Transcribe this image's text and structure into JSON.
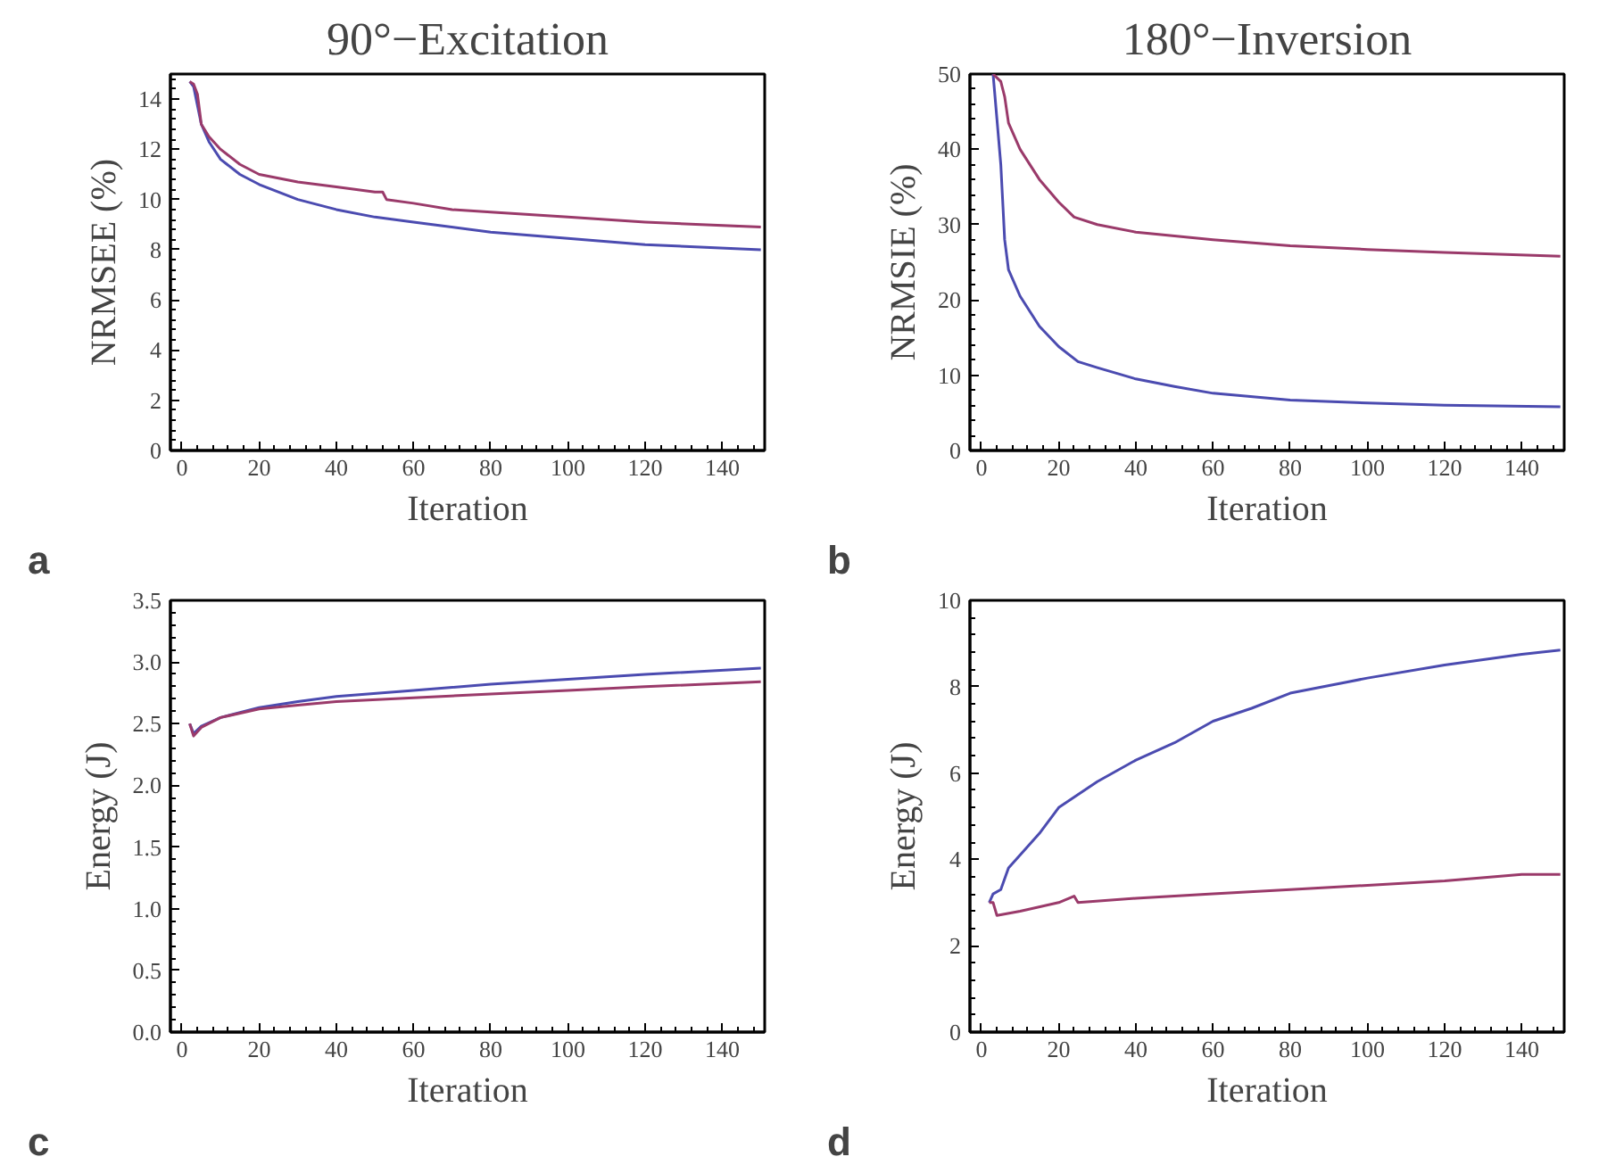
{
  "chart_data": [
    {
      "type": "line",
      "title": "90°−Excitation",
      "xlabel": "Iteration",
      "ylabel": "NRMSEE (%)",
      "annotations": [
        "a"
      ],
      "xlim": [
        -3,
        151
      ],
      "xticks": [
        0,
        20,
        40,
        60,
        80,
        100,
        120,
        140
      ],
      "ylim": [
        0,
        15
      ],
      "yticks": [
        0,
        2,
        4,
        6,
        8,
        10,
        12,
        14
      ],
      "grid": false,
      "series": [
        {
          "color": "#4b4bb0",
          "x": [
            2,
            3,
            5,
            7,
            10,
            15,
            20,
            30,
            40,
            50,
            60,
            80,
            100,
            120,
            150
          ],
          "values": [
            14.7,
            14.5,
            13,
            12.3,
            11.6,
            11.0,
            10.6,
            10.0,
            9.6,
            9.3,
            9.1,
            8.7,
            8.45,
            8.2,
            8.0
          ]
        },
        {
          "color": "#9a3a6a",
          "x": [
            2,
            3,
            4,
            5,
            7,
            10,
            15,
            20,
            30,
            40,
            50,
            52,
            53,
            60,
            70,
            80,
            100,
            120,
            150
          ],
          "values": [
            14.7,
            14.6,
            14.2,
            13,
            12.5,
            12.0,
            11.4,
            11.0,
            10.7,
            10.5,
            10.3,
            10.3,
            10.0,
            9.85,
            9.6,
            9.5,
            9.3,
            9.1,
            8.9
          ]
        }
      ]
    },
    {
      "type": "line",
      "title": "180°−Inversion",
      "xlabel": "Iteration",
      "ylabel": "NRMSIE (%)",
      "annotations": [
        "b"
      ],
      "xlim": [
        -3,
        151
      ],
      "xticks": [
        0,
        20,
        40,
        60,
        80,
        100,
        120,
        140
      ],
      "ylim": [
        0,
        50
      ],
      "yticks": [
        0,
        10,
        20,
        30,
        40,
        50
      ],
      "grid": false,
      "series": [
        {
          "color": "#4b4bb0",
          "x": [
            3,
            4,
            5,
            6,
            7,
            10,
            15,
            20,
            25,
            30,
            40,
            50,
            60,
            80,
            100,
            120,
            150
          ],
          "values": [
            50,
            44,
            38,
            28,
            24,
            20.5,
            16.5,
            13.8,
            11.8,
            11,
            9.5,
            8.5,
            7.6,
            6.7,
            6.3,
            6.0,
            5.8
          ]
        },
        {
          "color": "#9a3a6a",
          "x": [
            3,
            5,
            6,
            7,
            10,
            15,
            20,
            24,
            30,
            40,
            60,
            80,
            100,
            120,
            150
          ],
          "values": [
            50,
            49,
            47,
            43.5,
            40,
            36,
            33,
            31,
            30,
            29,
            28,
            27.2,
            26.7,
            26.3,
            25.8
          ]
        }
      ]
    },
    {
      "type": "line",
      "xlabel": "Iteration",
      "ylabel": "Energy (J)",
      "annotations": [
        "c"
      ],
      "xlim": [
        -3,
        151
      ],
      "xticks": [
        0,
        20,
        40,
        60,
        80,
        100,
        120,
        140
      ],
      "ylim": [
        0,
        3.5
      ],
      "yticks": [
        {
          "value": 0,
          "label": "0.0"
        },
        0.5,
        {
          "value": 1,
          "label": "1.0"
        },
        1.5,
        {
          "value": 2,
          "label": "2.0"
        },
        2.5,
        {
          "value": 3,
          "label": "3.0"
        },
        3.5
      ],
      "grid": false,
      "series": [
        {
          "color": "#4b4bb0",
          "x": [
            2,
            3,
            5,
            10,
            20,
            30,
            40,
            60,
            80,
            100,
            120,
            150
          ],
          "values": [
            2.5,
            2.42,
            2.48,
            2.55,
            2.63,
            2.68,
            2.72,
            2.77,
            2.82,
            2.86,
            2.9,
            2.95
          ]
        },
        {
          "color": "#9a3a6a",
          "x": [
            2,
            3,
            5,
            10,
            20,
            30,
            40,
            60,
            80,
            100,
            120,
            150
          ],
          "values": [
            2.5,
            2.4,
            2.47,
            2.55,
            2.62,
            2.65,
            2.68,
            2.71,
            2.74,
            2.77,
            2.8,
            2.84
          ]
        }
      ]
    },
    {
      "type": "line",
      "xlabel": "Iteration",
      "ylabel": "Energy (J)",
      "annotations": [
        "d"
      ],
      "xlim": [
        -3,
        151
      ],
      "xticks": [
        0,
        20,
        40,
        60,
        80,
        100,
        120,
        140
      ],
      "ylim": [
        0,
        10
      ],
      "yticks": [
        0,
        2,
        4,
        6,
        8,
        10
      ],
      "grid": false,
      "series": [
        {
          "color": "#4b4bb0",
          "x": [
            2,
            3,
            5,
            7,
            10,
            15,
            20,
            30,
            40,
            50,
            60,
            70,
            80,
            100,
            120,
            140,
            150
          ],
          "values": [
            3.0,
            3.2,
            3.3,
            3.8,
            4.1,
            4.6,
            5.2,
            5.8,
            6.3,
            6.7,
            7.2,
            7.5,
            7.85,
            8.2,
            8.5,
            8.75,
            8.85
          ]
        },
        {
          "color": "#9a3a6a",
          "x": [
            2,
            3,
            4,
            10,
            20,
            24,
            25,
            40,
            60,
            80,
            100,
            120,
            140,
            150
          ],
          "values": [
            3.0,
            3.0,
            2.7,
            2.8,
            3.0,
            3.15,
            3.0,
            3.1,
            3.2,
            3.3,
            3.4,
            3.5,
            3.65,
            3.65
          ]
        }
      ]
    }
  ]
}
